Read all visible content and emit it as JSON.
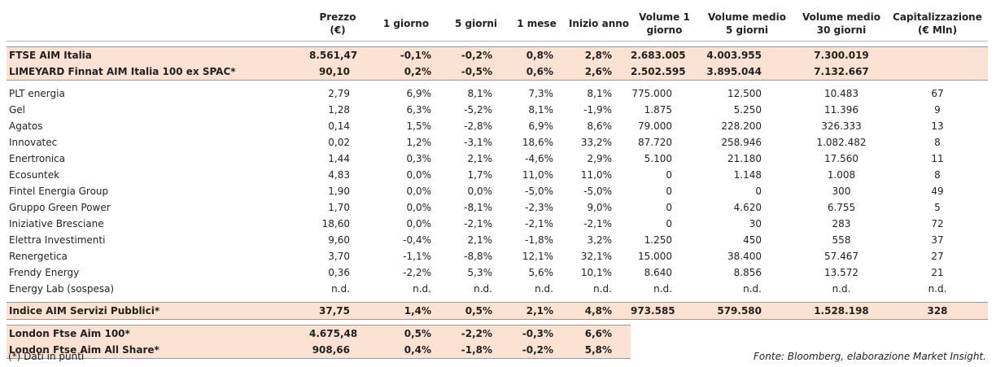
{
  "table": {
    "header": [
      "Prezzo\n(€)",
      "1 giorno",
      "5 giorni",
      "1 mese",
      "Inizio anno",
      "Volume 1\ngiorno",
      "Volume medio\n5 giorni",
      "Volume medio\n30 giorni",
      "Capitalizzazione\n(€ Mln)"
    ],
    "rows": [
      [
        "FTSE AIM Italia",
        "8.561,47",
        "-0,1%",
        "-0,2%",
        "0,8%",
        "2,8%",
        "2.683.005",
        "4.003.955",
        "7.300.019"
      ],
      [
        "LIMEYARD Finnat AIM Italia 100 ex SPAC*",
        "90,10",
        "0,2%",
        "-0,5%",
        "0,6%",
        "2,6%",
        "2.502.595",
        "3.895.044",
        "7.132.667"
      ],
      [
        "PLT energia",
        "2,79",
        "6,9%",
        "8,1%",
        "7,3%",
        "8,1%",
        "775.000",
        "12.500",
        "10.483",
        "67"
      ],
      [
        "Gel",
        "1,28",
        "6,3%",
        "-5,2%",
        "8,1%",
        "-1,9%",
        "1.875",
        "5.250",
        "11.396",
        "9"
      ],
      [
        "Agatos",
        "0,14",
        "1,5%",
        "-2,8%",
        "6,9%",
        "8,6%",
        "79.000",
        "228.200",
        "326.333",
        "13"
      ],
      [
        "Innovatec",
        "0,02",
        "1,2%",
        "-3,1%",
        "18,6%",
        "33,2%",
        "87.720",
        "258.946",
        "1.082.482",
        "8"
      ],
      [
        "Enertronica",
        "1,44",
        "0,3%",
        "2,1%",
        "-4,6%",
        "2,9%",
        "5.100",
        "21.180",
        "17.560",
        "11"
      ],
      [
        "Ecosuntek",
        "4,83",
        "0,0%",
        "1,7%",
        "11,0%",
        "11,0%",
        "0",
        "1.148",
        "1.008",
        "8"
      ],
      [
        "Fintel Energia Group",
        "1,90",
        "0,0%",
        "0,0%",
        "-5,0%",
        "-5,0%",
        "0",
        "0",
        "300",
        "49"
      ],
      [
        "Gruppo Green Power",
        "1,70",
        "0,0%",
        "-8,1%",
        "-2,3%",
        "9,0%",
        "0",
        "4.620",
        "6.755",
        "5"
      ],
      [
        "Iniziative Bresciane",
        "18,60",
        "0,0%",
        "-2,1%",
        "-2,1%",
        "-2,1%",
        "0",
        "30",
        "283",
        "72"
      ],
      [
        "Elettra Investimenti",
        "9,60",
        "-0,4%",
        "2,1%",
        "-1,8%",
        "3,2%",
        "1.250",
        "450",
        "558",
        "37"
      ],
      [
        "Renergetica",
        "3,70",
        "-1,1%",
        "-8,8%",
        "12,1%",
        "32,1%",
        "15.000",
        "38.400",
        "57.467",
        "27"
      ],
      [
        "Frendy Energy",
        "0,36",
        "-2,2%",
        "5,3%",
        "5,6%",
        "10,1%",
        "8.640",
        "8.856",
        "13.572",
        "21"
      ],
      [
        "Energy Lab (sospesa)",
        "n.d.",
        "n.d.",
        "n.d.",
        "n.d.",
        "n.d.",
        "n.d.",
        "n.d.",
        "n.d.",
        "n.d."
      ],
      [
        "Indice AIM Servizi Pubblici*",
        "37,75",
        "1,4%",
        "0,5%",
        "2,1%",
        "4,8%",
        "973.585",
        "579.580",
        "1.528.198",
        "328"
      ],
      [
        "London Ftse Aim 100*",
        "4.675,48",
        "0,5%",
        "-2,2%",
        "-0,3%",
        "6,6%"
      ],
      [
        "London Ftse Aim All Share*",
        "908,66",
        "0,4%",
        "-1,8%",
        "-0,2%",
        "5,8%"
      ]
    ],
    "note": "(*) Dati in punti",
    "source": "Fonte: Bloomberg, elaborazione Market Insight."
  }
}
